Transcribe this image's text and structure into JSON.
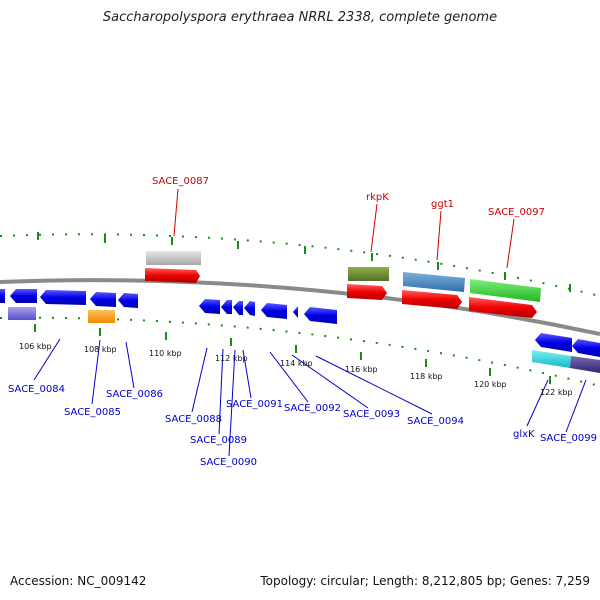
{
  "title": "Saccharopolyspora erythraea NRRL 2338, complete genome",
  "footer": {
    "accession": "Accession: NC_009142",
    "summary": "Topology: circular; Length: 8,212,805 bp; Genes: 7,259"
  },
  "colors": {
    "backbone": "#8a8a8a",
    "tick": "#1a8a1a",
    "upper_label": "#cc0000",
    "lower_label": "#0000cc",
    "cds": "#0000ee",
    "gene": "#ee0000"
  },
  "ticks": [
    {
      "label": "106 kbp"
    },
    {
      "label": "108 kbp"
    },
    {
      "label": "110 kbp"
    },
    {
      "label": "112 kbp"
    },
    {
      "label": "114 kbp"
    },
    {
      "label": "116 kbp"
    },
    {
      "label": "118 kbp"
    },
    {
      "label": "120 kbp"
    },
    {
      "label": "122 kbp"
    }
  ],
  "upper_labels": [
    "SACE_0087",
    "rkpK",
    "ggt1",
    "SACE_0097"
  ],
  "lower_labels": [
    "SACE_0084",
    "SACE_0085",
    "SACE_0086",
    "SACE_0088",
    "SACE_0089",
    "SACE_0090",
    "SACE_0091",
    "SACE_0092",
    "SACE_0093",
    "SACE_0094",
    "glxK",
    "SACE_0099"
  ]
}
